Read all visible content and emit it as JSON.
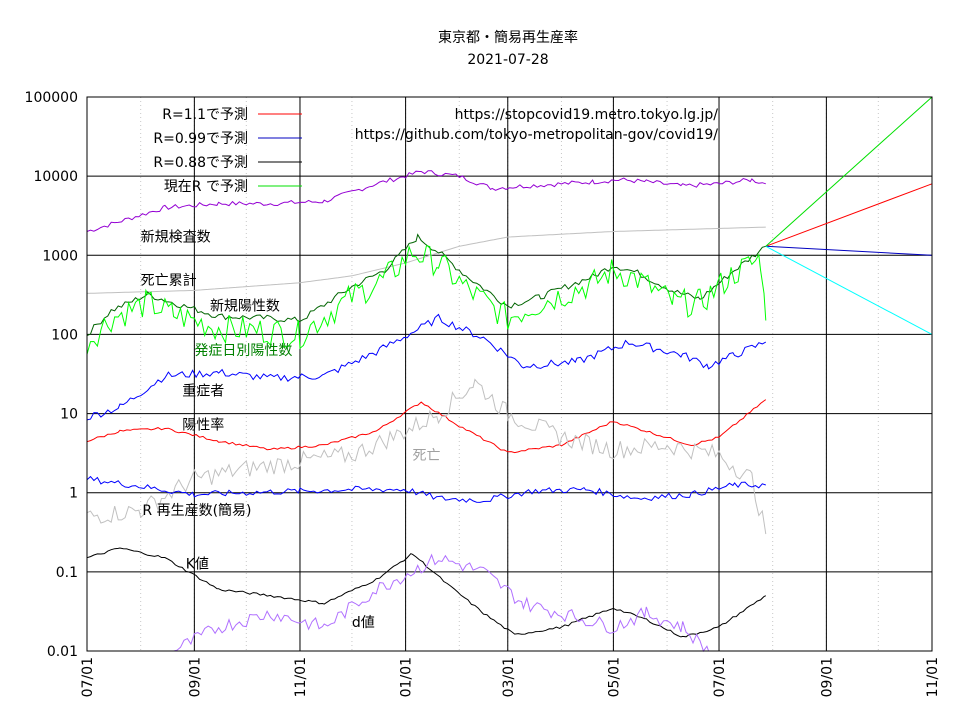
{
  "chart_data": {
    "type": "line",
    "title": "東京都・簡易再生産率",
    "subtitle": "2021-07-28",
    "urls": [
      "https://stopcovid19.metro.tokyo.lg.jp/",
      "https://github.com/tokyo-metropolitan-gov/covid19/"
    ],
    "x_ticks": [
      "07/01",
      "09/01",
      "11/01",
      "01/01",
      "03/01",
      "05/01",
      "07/01",
      "09/01",
      "11/01"
    ],
    "x_range": [
      "2020-07-01",
      "2021-11-01"
    ],
    "y_scale": "log",
    "y_range": [
      0.01,
      100000
    ],
    "y_ticks": [
      "0.01",
      "0.1",
      "1",
      "10",
      "100",
      "1000",
      "10000",
      "100000"
    ],
    "grid": "on",
    "legend_position": "top-left",
    "legend": [
      {
        "name": "R=1.1で予測",
        "color": "#ff0000"
      },
      {
        "name": "R=0.99で予測",
        "color": "#0000c0"
      },
      {
        "name": "R=0.88で予測",
        "color": "#000000"
      },
      {
        "name": "現在R で予測",
        "color": "#00e000"
      }
    ],
    "series": [
      {
        "name": "新規検査数",
        "color": "#9400d3",
        "x": [
          "2020-07-01",
          "2020-08-15",
          "2020-09-15",
          "2020-10-15",
          "2020-11-15",
          "2020-12-15",
          "2021-01-01",
          "2021-01-10",
          "2021-02-01",
          "2021-02-20",
          "2021-03-10",
          "2021-04-01",
          "2021-04-20",
          "2021-05-05",
          "2021-05-20",
          "2021-06-10",
          "2021-07-01",
          "2021-07-20",
          "2021-07-28"
        ],
        "values": [
          2000,
          4000,
          4500,
          4500,
          4800,
          8000,
          10000,
          11500,
          10000,
          7000,
          7500,
          8000,
          8500,
          9000,
          8500,
          7500,
          8000,
          9000,
          8000
        ]
      },
      {
        "name": "死亡累計",
        "color": "#c0c0c0",
        "x": [
          "2020-07-01",
          "2020-09-01",
          "2020-11-01",
          "2020-12-01",
          "2021-01-01",
          "2021-02-01",
          "2021-03-01",
          "2021-05-01",
          "2021-07-28"
        ],
        "values": [
          330,
          360,
          450,
          550,
          800,
          1300,
          1700,
          2000,
          2270
        ]
      },
      {
        "name": "新規陽性数",
        "color": "#006400",
        "x": [
          "2020-07-01",
          "2020-07-15",
          "2020-08-05",
          "2020-08-20",
          "2020-09-15",
          "2020-10-15",
          "2020-11-01",
          "2020-12-01",
          "2020-12-20",
          "2021-01-08",
          "2021-01-20",
          "2021-02-05",
          "2021-03-01",
          "2021-03-20",
          "2021-04-20",
          "2021-05-01",
          "2021-05-15",
          "2021-06-05",
          "2021-06-20",
          "2021-07-10",
          "2021-07-28"
        ],
        "values": [
          100,
          200,
          320,
          250,
          170,
          160,
          150,
          400,
          650,
          1700,
          1100,
          550,
          230,
          300,
          550,
          750,
          600,
          350,
          280,
          650,
          1300
        ]
      },
      {
        "name": "発症日別陽性数",
        "color": "#00ff00",
        "x": [
          "2020-07-01",
          "2020-07-15",
          "2020-08-05",
          "2020-08-20",
          "2020-09-15",
          "2020-10-15",
          "2020-11-01",
          "2020-12-01",
          "2020-12-20",
          "2021-01-05",
          "2021-01-20",
          "2021-02-05",
          "2021-03-01",
          "2021-03-20",
          "2021-04-20",
          "2021-05-01",
          "2021-05-15",
          "2021-06-05",
          "2021-06-20",
          "2021-07-10",
          "2021-07-25",
          "2021-07-28"
        ],
        "values": [
          80,
          160,
          250,
          180,
          120,
          110,
          100,
          300,
          500,
          1100,
          800,
          380,
          160,
          250,
          450,
          650,
          500,
          250,
          250,
          600,
          900,
          150
        ]
      },
      {
        "name": "重症者",
        "color": "#0000ff",
        "x": [
          "2020-07-01",
          "2020-07-20",
          "2020-08-15",
          "2020-09-15",
          "2020-10-15",
          "2020-11-15",
          "2020-12-15",
          "2021-01-20",
          "2021-02-15",
          "2021-03-10",
          "2021-04-10",
          "2021-05-10",
          "2021-06-10",
          "2021-06-25",
          "2021-07-10",
          "2021-07-28"
        ],
        "values": [
          9,
          12,
          30,
          33,
          28,
          30,
          60,
          160,
          90,
          40,
          45,
          80,
          55,
          40,
          55,
          80
        ]
      },
      {
        "name": "陽性率",
        "color": "#ff0000",
        "x": [
          "2020-07-01",
          "2020-07-20",
          "2020-08-15",
          "2020-09-15",
          "2020-10-15",
          "2020-11-15",
          "2020-12-15",
          "2021-01-10",
          "2021-02-01",
          "2021-03-01",
          "2021-04-01",
          "2021-05-01",
          "2021-05-20",
          "2021-06-15",
          "2021-07-01",
          "2021-07-28"
        ],
        "values": [
          4.5,
          6,
          6.5,
          4.5,
          3.5,
          4,
          6,
          14,
          7,
          3.2,
          4,
          8,
          6,
          4,
          5,
          15
        ]
      },
      {
        "name": "死亡",
        "color": "#c0c0c0",
        "x": [
          "2020-07-01",
          "2020-08-01",
          "2020-09-01",
          "2020-10-01",
          "2020-11-01",
          "2020-12-01",
          "2021-01-01",
          "2021-01-20",
          "2021-02-10",
          "2021-03-01",
          "2021-04-01",
          "2021-05-01",
          "2021-06-01",
          "2021-07-01",
          "2021-07-20",
          "2021-07-28"
        ],
        "values": [
          0.5,
          0.6,
          1.5,
          2,
          2.5,
          3,
          6,
          10,
          25,
          10,
          5,
          3.5,
          4,
          3,
          1.5,
          0.3
        ]
      },
      {
        "name": "R 再生産数(簡易)",
        "color": "#0000ff",
        "x": [
          "2020-07-01",
          "2020-08-01",
          "2020-09-01",
          "2020-10-01",
          "2020-11-01",
          "2020-12-01",
          "2021-01-01",
          "2021-01-20",
          "2021-02-15",
          "2021-03-15",
          "2021-04-15",
          "2021-05-15",
          "2021-06-15",
          "2021-07-10",
          "2021-07-28"
        ],
        "values": [
          1.5,
          1.2,
          0.95,
          1,
          1.05,
          1.1,
          1.1,
          0.85,
          0.8,
          1.05,
          1.1,
          0.85,
          0.95,
          1.25,
          1.25
        ]
      },
      {
        "name": "K値",
        "color": "#000000",
        "x": [
          "2020-07-01",
          "2020-07-20",
          "2020-08-15",
          "2020-09-15",
          "2020-10-15",
          "2020-11-15",
          "2020-12-15",
          "2021-01-05",
          "2021-01-25",
          "2021-02-15",
          "2021-03-05",
          "2021-04-01",
          "2021-05-01",
          "2021-05-20",
          "2021-06-10",
          "2021-07-01",
          "2021-07-28"
        ],
        "values": [
          0.15,
          0.2,
          0.15,
          0.06,
          0.05,
          0.04,
          0.08,
          0.17,
          0.07,
          0.03,
          0.016,
          0.02,
          0.035,
          0.025,
          0.015,
          0.02,
          0.05
        ]
      },
      {
        "name": "d値",
        "color": "#b070ff",
        "x": [
          "2020-08-20",
          "2020-09-15",
          "2020-10-15",
          "2020-11-15",
          "2020-12-15",
          "2021-01-20",
          "2021-02-15",
          "2021-03-10",
          "2021-04-01",
          "2021-05-01",
          "2021-05-20",
          "2021-06-10",
          "2021-06-25"
        ],
        "values": [
          0.01,
          0.02,
          0.03,
          0.02,
          0.06,
          0.15,
          0.1,
          0.04,
          0.03,
          0.02,
          0.03,
          0.02,
          0.01
        ]
      },
      {
        "name": "R=1.1で予測",
        "color": "#ff0000",
        "x": [
          "2021-07-28",
          "2021-11-01"
        ],
        "values": [
          1300,
          8000
        ]
      },
      {
        "name": "R=0.99で予測",
        "color": "#0000c0",
        "x": [
          "2021-07-28",
          "2021-11-01"
        ],
        "values": [
          1300,
          1000
        ]
      },
      {
        "name": "R=0.88で予測",
        "color": "#00ffff",
        "x": [
          "2021-07-28",
          "2021-11-01"
        ],
        "values": [
          1300,
          100
        ]
      },
      {
        "name": "現在R で予測",
        "color": "#00e000",
        "x": [
          "2021-07-28",
          "2021-11-01"
        ],
        "values": [
          1300,
          100000
        ]
      }
    ],
    "labels": [
      {
        "text": "新規検査数",
        "x": "2020-08-01",
        "y": 1500,
        "color": "#000000"
      },
      {
        "text": "死亡累計",
        "x": "2020-08-01",
        "y": 420,
        "color": "#000000"
      },
      {
        "text": "新規陽性数",
        "x": "2020-09-10",
        "y": 200,
        "color": "#000000"
      },
      {
        "text": "発症日別陽性数",
        "x": "2020-09-01",
        "y": 55,
        "color": "#008000"
      },
      {
        "text": "重症者",
        "x": "2020-08-25",
        "y": 17,
        "color": "#000000"
      },
      {
        "text": "陽性率",
        "x": "2020-08-25",
        "y": 6.3,
        "color": "#000000"
      },
      {
        "text": "死亡",
        "x": "2021-01-05",
        "y": 2.6,
        "color": "#a0a0a0"
      },
      {
        "text": "R  再生産数(簡易)",
        "x": "2020-08-02",
        "y": 0.52,
        "color": "#000000"
      },
      {
        "text": "K値",
        "x": "2020-08-27",
        "y": 0.11,
        "color": "#000000"
      },
      {
        "text": "d値",
        "x": "2020-12-01",
        "y": 0.02,
        "color": "#000000"
      }
    ]
  }
}
